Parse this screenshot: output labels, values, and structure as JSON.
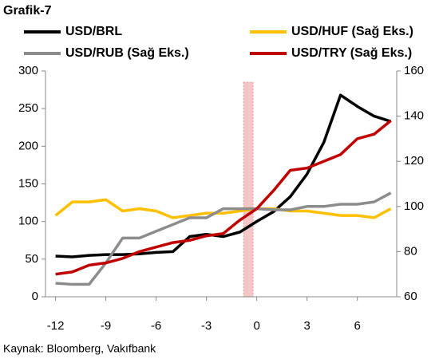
{
  "chart_data": {
    "type": "line",
    "title": "Grafik-7",
    "source": "Kaynak: Bloomberg, Vakıfbank",
    "x": [
      -12,
      -11,
      -10,
      -9,
      -8,
      -7,
      -6,
      -5,
      -4,
      -3,
      -2,
      -1,
      0,
      1,
      2,
      3,
      4,
      5,
      6,
      7,
      8
    ],
    "xlim": [
      -12.6,
      8.35
    ],
    "xticks": [
      -12,
      -9,
      -6,
      -3,
      0,
      3,
      6
    ],
    "ylim": [
      0,
      300
    ],
    "yticks": [
      0,
      50,
      100,
      150,
      200,
      250,
      300
    ],
    "y2lim": [
      60,
      160
    ],
    "y2ticks": [
      60,
      80,
      100,
      120,
      140,
      160
    ],
    "highlight_x": -0.5,
    "series": [
      {
        "name": "USD/BRL",
        "color": "#000000",
        "values": [
          54,
          53,
          55,
          56,
          56,
          57,
          59,
          60,
          80,
          83,
          80,
          86,
          100,
          113,
          133,
          163,
          205,
          268,
          253,
          240,
          233
        ]
      },
      {
        "name": "USD/HUF (Sağ Eks.)",
        "color": "#ffc000",
        "axis": "y2",
        "values": [
          96,
          102,
          102,
          103,
          98,
          99,
          98,
          95,
          96,
          97,
          97,
          98,
          99,
          99,
          98,
          98,
          97,
          96,
          96,
          95,
          99
        ]
      },
      {
        "name": "USD/RUB (Sağ Eks.)",
        "color": "#8c8c8c",
        "axis": "y2",
        "values": [
          66,
          65.5,
          65.5,
          75,
          86,
          86,
          89,
          92,
          95,
          95,
          99,
          99,
          99,
          98.5,
          98.5,
          100,
          100,
          101,
          101,
          102,
          106
        ]
      },
      {
        "name": "USD/TRY (Sağ Eks.)",
        "color": "#c00000",
        "axis": "y2",
        "values": [
          70,
          71,
          74,
          75,
          77,
          80,
          82,
          84,
          85,
          87,
          88,
          94,
          99,
          107,
          116,
          117,
          120,
          123,
          130,
          132,
          138
        ]
      }
    ]
  }
}
